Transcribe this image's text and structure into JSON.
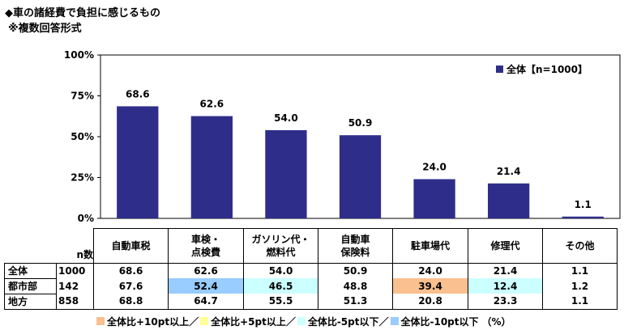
{
  "title_line1": "◆車の諸経費で負担に感じるもの",
  "title_line2": "※複数回答形式",
  "legend_label": "全体【n=1000】",
  "colors": {
    "bar": "#2e2e8a",
    "plus10": "#fac090",
    "plus5": "#ffff99",
    "minus5": "#ccffff",
    "minus10": "#99ccff"
  },
  "chart_data": {
    "type": "bar",
    "categories": [
      "自動車税",
      "車検・点検費",
      "ガソリン代・燃料代",
      "自動車保険料",
      "駐車場代",
      "修理代",
      "その他"
    ],
    "series": [
      {
        "name": "全体【n=1000】",
        "values": [
          68.6,
          62.6,
          54.0,
          50.9,
          24.0,
          21.4,
          1.1
        ]
      }
    ],
    "value_labels": [
      "68.6",
      "62.6",
      "54.0",
      "50.9",
      "24.0",
      "21.4",
      "1.1"
    ],
    "yticks": [
      "0%",
      "25%",
      "50%",
      "75%",
      "100%"
    ],
    "ylim": [
      0,
      100
    ],
    "grid": false,
    "legend_position": "top-right"
  },
  "table": {
    "n_header": "n数",
    "columns": [
      [
        "自動車税"
      ],
      [
        "車検・",
        "点検費"
      ],
      [
        "ガソリン代・",
        "燃料代"
      ],
      [
        "自動車",
        "保険料"
      ],
      [
        "駐車場代"
      ],
      [
        "修理代"
      ],
      [
        "その他"
      ]
    ],
    "rows": [
      {
        "label": "全体",
        "n": "1000",
        "values": [
          "68.6",
          "62.6",
          "54.0",
          "50.9",
          "24.0",
          "21.4",
          "1.1"
        ],
        "highlight": [
          "",
          "",
          "",
          "",
          "",
          "",
          ""
        ]
      },
      {
        "label": "都市部",
        "n": "142",
        "values": [
          "67.6",
          "52.4",
          "46.5",
          "48.8",
          "39.4",
          "12.4",
          "1.2"
        ],
        "highlight": [
          "",
          "minus10",
          "minus5",
          "",
          "plus10",
          "minus5",
          ""
        ]
      },
      {
        "label": "地方",
        "n": "858",
        "values": [
          "68.8",
          "64.7",
          "55.5",
          "51.3",
          "20.8",
          "23.3",
          "1.1"
        ],
        "highlight": [
          "",
          "",
          "",
          "",
          "",
          "",
          ""
        ]
      }
    ]
  },
  "footer": {
    "items": [
      {
        "key": "plus10",
        "label": "全体比+10pt以上／"
      },
      {
        "key": "plus5",
        "label": "全体比+5pt以上／"
      },
      {
        "key": "minus5",
        "label": "全体比-5pt以下／"
      },
      {
        "key": "minus10",
        "label": "全体比-10pt以下"
      }
    ],
    "unit": "（%）"
  }
}
